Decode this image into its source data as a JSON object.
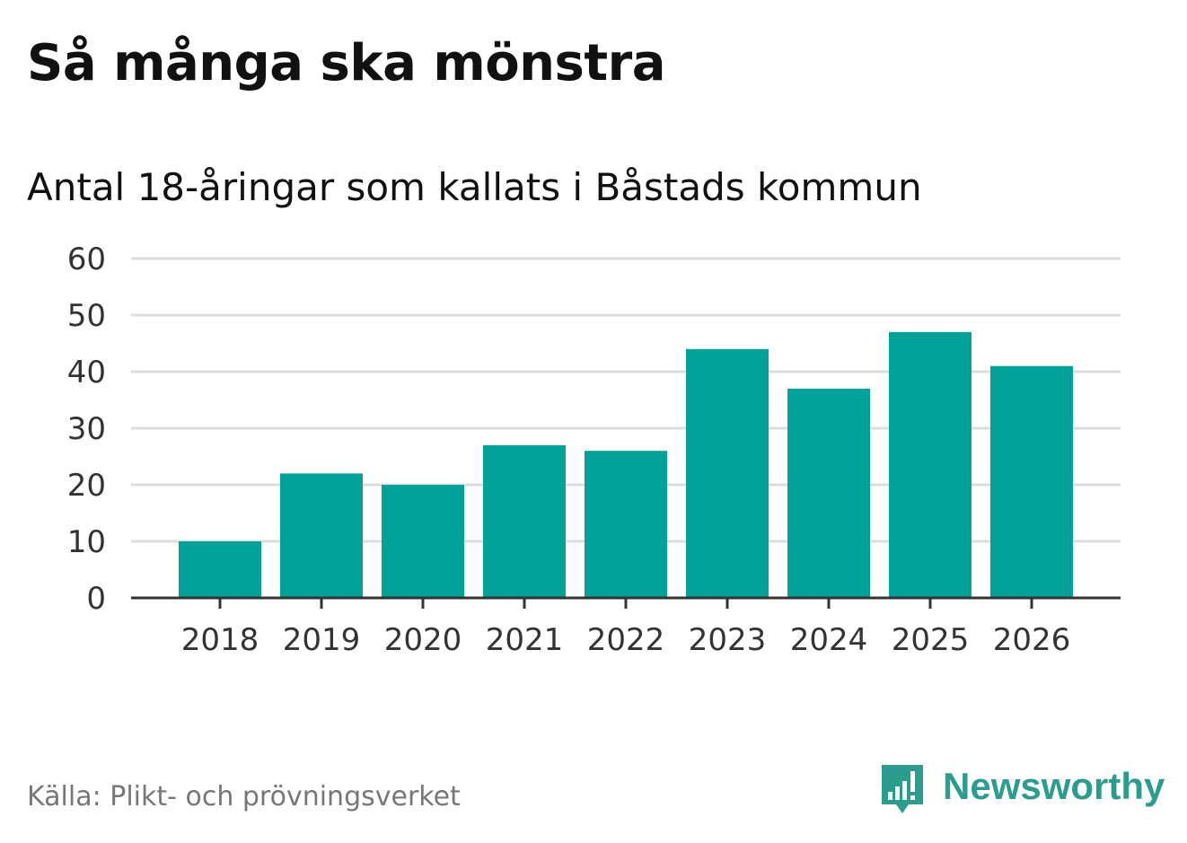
{
  "header": {
    "title": "Så många ska mönstra",
    "subtitle": "Antal 18-åringar som kallats i Båstads kommun"
  },
  "footer": {
    "source": "Källa: Plikt- och prövningsverket",
    "brand": "Newsworthy",
    "brand_icon": "newsworthy-logo-icon"
  },
  "colors": {
    "bar": "#00a29a",
    "brand": "#2a9d8f",
    "grid": "#dddddd",
    "axis": "#333333",
    "tick_text": "#333333"
  },
  "chart_data": {
    "type": "bar",
    "title": "Så många ska mönstra",
    "subtitle": "Antal 18-åringar som kallats i Båstads kommun",
    "categories": [
      "2018",
      "2019",
      "2020",
      "2021",
      "2022",
      "2023",
      "2024",
      "2025",
      "2026"
    ],
    "values": [
      10,
      22,
      20,
      27,
      26,
      44,
      37,
      47,
      41
    ],
    "xlabel": "",
    "ylabel": "",
    "ylim": [
      0,
      60
    ],
    "yticks": [
      0,
      10,
      20,
      30,
      40,
      50,
      60
    ],
    "grid": true,
    "legend": "none"
  }
}
